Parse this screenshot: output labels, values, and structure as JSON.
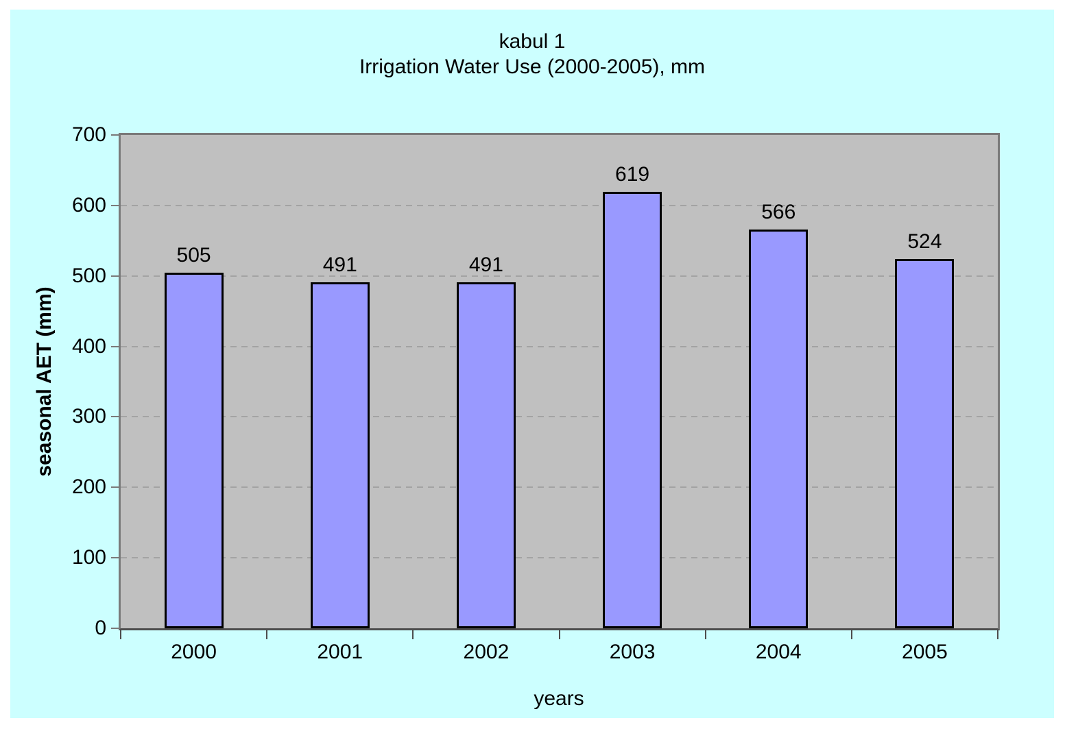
{
  "chart": {
    "title_line1": "kabul 1",
    "title_line2": "Irrigation Water Use (2000-2005), mm",
    "y_axis_title": "seasonal AET (mm)",
    "x_axis_title": "years"
  },
  "chart_data": {
    "type": "bar",
    "title": "kabul 1\nIrrigation Water Use (2000-2005), mm",
    "categories": [
      "2000",
      "2001",
      "2002",
      "2003",
      "2004",
      "2005"
    ],
    "values": [
      505,
      491,
      491,
      619,
      566,
      524
    ],
    "data_labels": true,
    "xlabel": "years",
    "ylabel": "seasonal AET (mm)",
    "ylim": [
      0,
      700
    ],
    "ytick_step": 100,
    "ytick_labels": [
      "0",
      "100",
      "200",
      "300",
      "400",
      "500",
      "600",
      "700"
    ],
    "grid": "horizontal-dashed",
    "legend": "none",
    "colors": {
      "bar_fill": "#9999FF",
      "bar_border": "#000000",
      "plot_background": "#C0C0C0",
      "chart_background": "#CCFFFF",
      "gridline": "#A3A3A3",
      "plot_border": "#7A7A7A",
      "axis_line": "#4D4D4D",
      "text": "#000000"
    }
  }
}
